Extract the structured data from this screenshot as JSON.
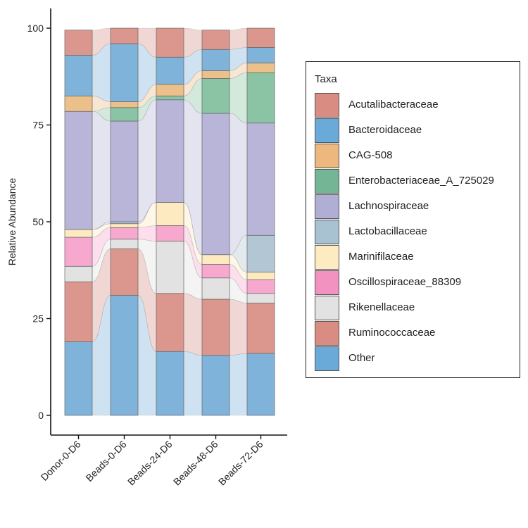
{
  "chart_data": {
    "type": "alluvial stacked bar",
    "ylabel": "Relative Abundance",
    "xlabel": "",
    "ylim": [
      0,
      100
    ],
    "yticks": [
      0,
      25,
      50,
      75,
      100
    ],
    "categories": [
      "Donor-0-D6",
      "Beads-0-D6",
      "Beads-24-D6",
      "Beads-48-D6",
      "Beads-72-D6"
    ],
    "legend_title": "Taxa",
    "legend_position": "right",
    "series": [
      {
        "name": "Other",
        "color": "#7FB3DA",
        "values": [
          19,
          31,
          16.5,
          15.5,
          16
        ]
      },
      {
        "name": "Ruminococcaceae",
        "color": "#DB968E",
        "values": [
          15.5,
          12,
          15,
          14.5,
          13
        ]
      },
      {
        "name": "Rikenellaceae",
        "color": "#E2E2E2",
        "values": [
          4,
          2.5,
          13.5,
          5.5,
          2.5
        ]
      },
      {
        "name": "Oscillospiraceae_88309",
        "color": "#F6A8CE",
        "values": [
          7.5,
          3,
          4,
          3.5,
          3.5
        ]
      },
      {
        "name": "Marinifilaceae",
        "color": "#FDEAC0",
        "values": [
          2,
          1,
          6,
          2.5,
          2
        ]
      },
      {
        "name": "Lactobacillaceae",
        "color": "#B2C7D3",
        "values": [
          0,
          0.5,
          0,
          0,
          9.5
        ]
      },
      {
        "name": "Lachnospiraceae",
        "color": "#B8B5D8",
        "values": [
          30.5,
          26,
          26.5,
          36.5,
          29
        ]
      },
      {
        "name": "Enterobacteriaceae_A_725029",
        "color": "#8AC4A4",
        "values": [
          0,
          3.5,
          1,
          9,
          13
        ]
      },
      {
        "name": "CAG-508",
        "color": "#EBC08A",
        "values": [
          4,
          1.5,
          3,
          2,
          2.5
        ]
      },
      {
        "name": "Bacteroidaceae",
        "color": "#7FB3DA",
        "values": [
          10.5,
          15,
          7,
          5.5,
          4
        ]
      },
      {
        "name": "Acutalibacteraceae",
        "color": "#DB968E",
        "values": [
          6.5,
          4,
          7.5,
          5,
          5
        ]
      }
    ]
  },
  "legend_items": [
    {
      "label": "Acutalibacteraceae",
      "color": "#D98C82"
    },
    {
      "label": "Bacteroidaceae",
      "color": "#6AAAD8"
    },
    {
      "label": "CAG-508",
      "color": "#ECB87E"
    },
    {
      "label": "Enterobacteriaceae_A_725029",
      "color": "#73B595"
    },
    {
      "label": "Lachnospiraceae",
      "color": "#B0AED5"
    },
    {
      "label": "Lactobacillaceae",
      "color": "#A9C2D1"
    },
    {
      "label": "Marinifilaceae",
      "color": "#FDEBC2"
    },
    {
      "label": "Oscillospiraceae_88309",
      "color": "#F292C0"
    },
    {
      "label": "Rikenellaceae",
      "color": "#E2E2E2"
    },
    {
      "label": "Ruminococcaceae",
      "color": "#D98C82"
    },
    {
      "label": "Other",
      "color": "#6AAAD8"
    }
  ]
}
